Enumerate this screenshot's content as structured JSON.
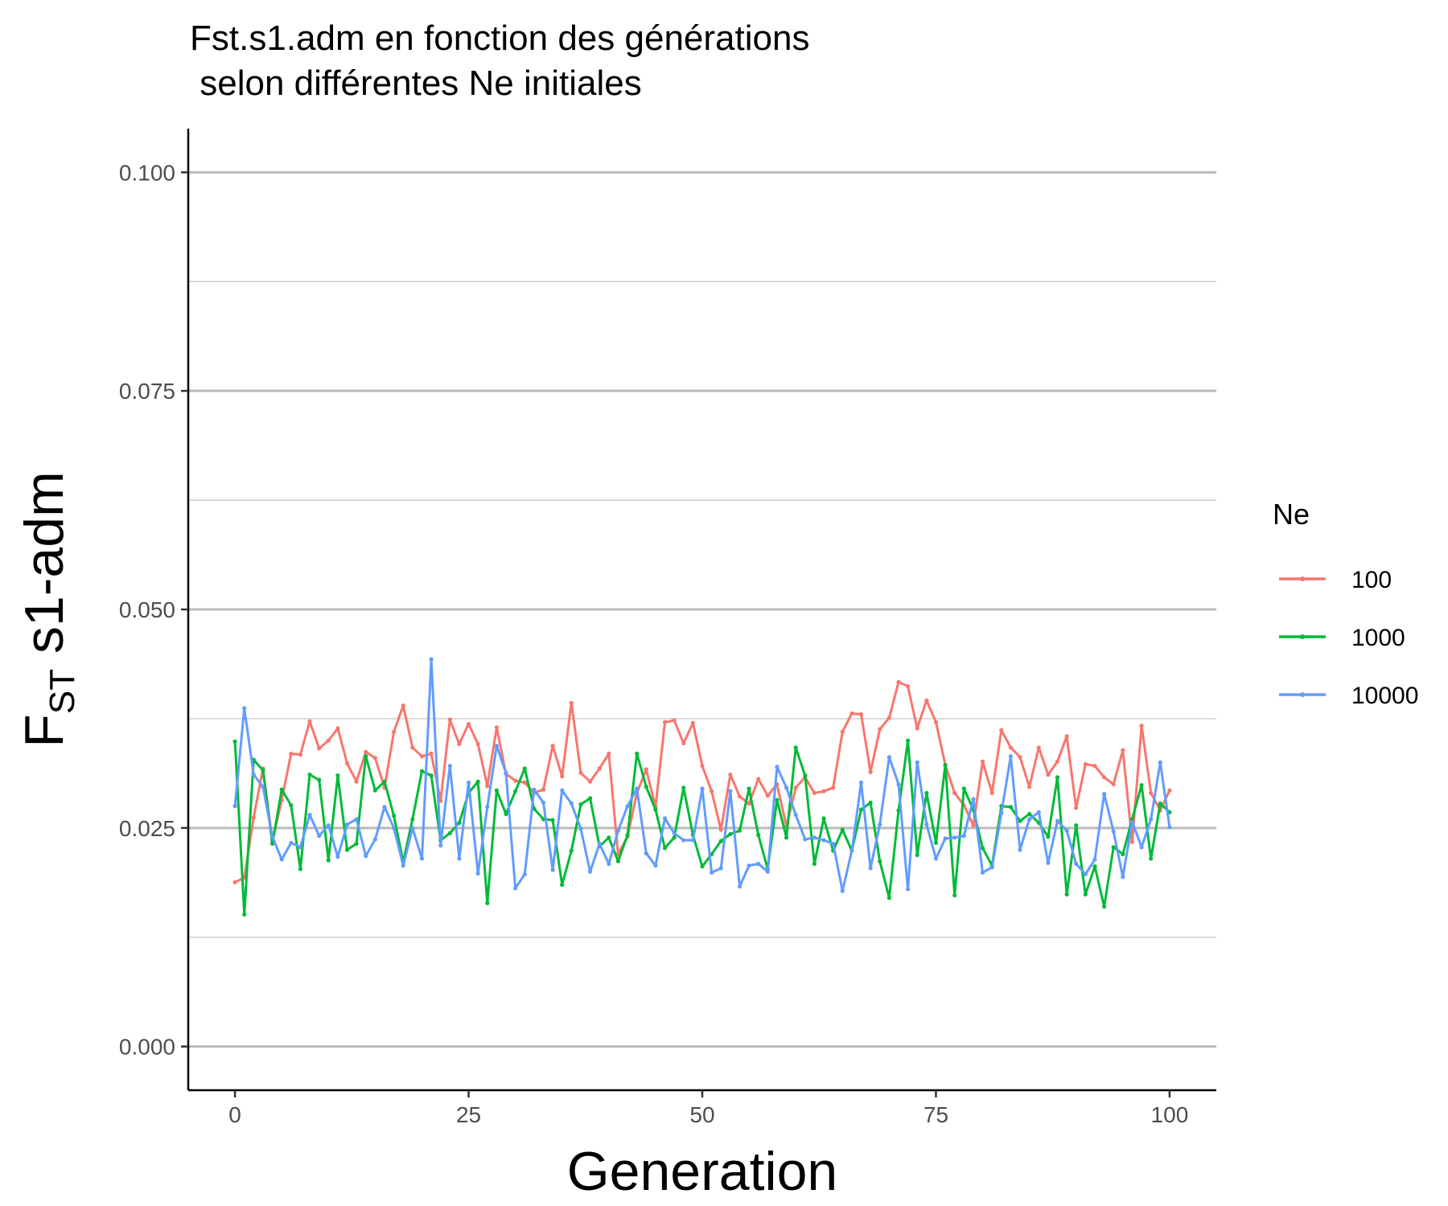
{
  "chart_data": {
    "type": "line",
    "title_line1": "Fst.s1.adm en fonction des générations",
    "title_line2": " selon différentes Ne initiales",
    "xlabel": "Generation",
    "ylabel_main": "F",
    "ylabel_sub": "ST",
    "ylabel_rest": " s1-adm",
    "xlim": [
      -5,
      105
    ],
    "ylim": [
      -0.005,
      0.105
    ],
    "x_ticks": [
      0,
      25,
      50,
      75,
      100
    ],
    "x_tick_labels": [
      "0",
      "25",
      "50",
      "75",
      "100"
    ],
    "y_ticks": [
      0,
      0.025,
      0.05,
      0.075,
      0.1
    ],
    "y_tick_labels": [
      "0.000",
      "0.025",
      "0.050",
      "0.075",
      "0.100"
    ],
    "y_minor_ticks": [
      0.0125,
      0.0375,
      0.0625,
      0.0875
    ],
    "grid": "horizontal",
    "legend_title": "Ne",
    "legend_position": "right",
    "x": [
      0,
      1,
      2,
      3,
      4,
      5,
      6,
      7,
      8,
      9,
      10,
      11,
      12,
      13,
      14,
      15,
      16,
      17,
      18,
      19,
      20,
      21,
      22,
      23,
      24,
      25,
      26,
      27,
      28,
      29,
      30,
      31,
      32,
      33,
      34,
      35,
      36,
      37,
      38,
      39,
      40,
      41,
      42,
      43,
      44,
      45,
      46,
      47,
      48,
      49,
      50,
      51,
      52,
      53,
      54,
      55,
      56,
      57,
      58,
      59,
      60,
      61,
      62,
      63,
      64,
      65,
      66,
      67,
      68,
      69,
      70,
      71,
      72,
      73,
      74,
      75,
      76,
      77,
      78,
      79,
      80,
      81,
      82,
      83,
      84,
      85,
      86,
      87,
      88,
      89,
      90,
      91,
      92,
      93,
      94,
      95,
      96,
      97,
      98,
      99,
      100
    ],
    "series": [
      {
        "name": "100",
        "color": "#F8766D",
        "values": [
          0.0188,
          0.0193,
          0.0262,
          0.0318,
          0.0235,
          0.0282,
          0.0335,
          0.0334,
          0.0372,
          0.0341,
          0.035,
          0.0364,
          0.0324,
          0.0303,
          0.0337,
          0.033,
          0.0296,
          0.036,
          0.039,
          0.0342,
          0.0332,
          0.0335,
          0.0281,
          0.0374,
          0.0346,
          0.0369,
          0.0346,
          0.0298,
          0.0365,
          0.0312,
          0.0304,
          0.0302,
          0.029,
          0.0294,
          0.0344,
          0.0309,
          0.0393,
          0.0313,
          0.0303,
          0.0318,
          0.0335,
          0.022,
          0.024,
          0.029,
          0.0317,
          0.0274,
          0.0371,
          0.0373,
          0.0347,
          0.037,
          0.0321,
          0.0292,
          0.0248,
          0.0311,
          0.0286,
          0.0278,
          0.0306,
          0.0287,
          0.03,
          0.0252,
          0.0296,
          0.0308,
          0.029,
          0.0292,
          0.0296,
          0.036,
          0.0381,
          0.038,
          0.0314,
          0.0363,
          0.0376,
          0.0417,
          0.0412,
          0.0364,
          0.0396,
          0.0371,
          0.0322,
          0.029,
          0.0276,
          0.0253,
          0.0326,
          0.029,
          0.0362,
          0.0342,
          0.0331,
          0.0297,
          0.0342,
          0.0311,
          0.0326,
          0.0355,
          0.0273,
          0.0323,
          0.0321,
          0.0308,
          0.03,
          0.0339,
          0.0234,
          0.0367,
          0.029,
          0.027,
          0.0293
        ]
      },
      {
        "name": "1000",
        "color": "#00BA38",
        "values": [
          0.0349,
          0.0151,
          0.0328,
          0.0316,
          0.0232,
          0.0294,
          0.0276,
          0.0203,
          0.0311,
          0.0305,
          0.0213,
          0.031,
          0.0225,
          0.0232,
          0.0332,
          0.0293,
          0.0303,
          0.0264,
          0.0211,
          0.026,
          0.0315,
          0.031,
          0.0236,
          0.0244,
          0.0256,
          0.029,
          0.0303,
          0.0164,
          0.0293,
          0.0266,
          0.0292,
          0.0318,
          0.0272,
          0.026,
          0.0259,
          0.0185,
          0.0224,
          0.0277,
          0.0284,
          0.0229,
          0.0239,
          0.0212,
          0.0242,
          0.0335,
          0.0297,
          0.0271,
          0.0227,
          0.0239,
          0.0296,
          0.0242,
          0.0206,
          0.022,
          0.0235,
          0.0243,
          0.0247,
          0.0295,
          0.0242,
          0.0203,
          0.0282,
          0.0239,
          0.0342,
          0.031,
          0.0209,
          0.0261,
          0.0224,
          0.0248,
          0.0224,
          0.0271,
          0.0279,
          0.0212,
          0.017,
          0.027,
          0.035,
          0.0219,
          0.029,
          0.0233,
          0.0322,
          0.0173,
          0.0295,
          0.0271,
          0.0227,
          0.0207,
          0.0275,
          0.0274,
          0.0258,
          0.0266,
          0.0256,
          0.024,
          0.0308,
          0.0174,
          0.0253,
          0.0174,
          0.0206,
          0.016,
          0.0228,
          0.022,
          0.026,
          0.0299,
          0.0215,
          0.0278,
          0.0268
        ]
      },
      {
        "name": "10000",
        "color": "#619CFF",
        "values": [
          0.0275,
          0.0387,
          0.0311,
          0.0297,
          0.024,
          0.0214,
          0.0233,
          0.0228,
          0.0265,
          0.0241,
          0.0253,
          0.0217,
          0.0254,
          0.026,
          0.0218,
          0.0237,
          0.0274,
          0.025,
          0.0207,
          0.025,
          0.0215,
          0.0443,
          0.023,
          0.0321,
          0.0215,
          0.0302,
          0.0198,
          0.0274,
          0.0344,
          0.0313,
          0.0181,
          0.0197,
          0.0294,
          0.0279,
          0.0202,
          0.0293,
          0.0278,
          0.0249,
          0.02,
          0.0232,
          0.0209,
          0.0247,
          0.0275,
          0.0295,
          0.0221,
          0.0207,
          0.0261,
          0.0244,
          0.0236,
          0.0236,
          0.0295,
          0.0199,
          0.0204,
          0.0292,
          0.0183,
          0.0207,
          0.0209,
          0.02,
          0.032,
          0.0296,
          0.0265,
          0.0237,
          0.0239,
          0.0236,
          0.0232,
          0.0178,
          0.0224,
          0.0302,
          0.0204,
          0.0254,
          0.0331,
          0.03,
          0.018,
          0.0325,
          0.0254,
          0.0215,
          0.0238,
          0.0239,
          0.0241,
          0.0283,
          0.0199,
          0.0205,
          0.0267,
          0.0332,
          0.0225,
          0.026,
          0.0268,
          0.021,
          0.0258,
          0.0247,
          0.0209,
          0.0197,
          0.0214,
          0.0289,
          0.0246,
          0.0194,
          0.0257,
          0.0228,
          0.026,
          0.0325,
          0.0251
        ]
      }
    ]
  }
}
